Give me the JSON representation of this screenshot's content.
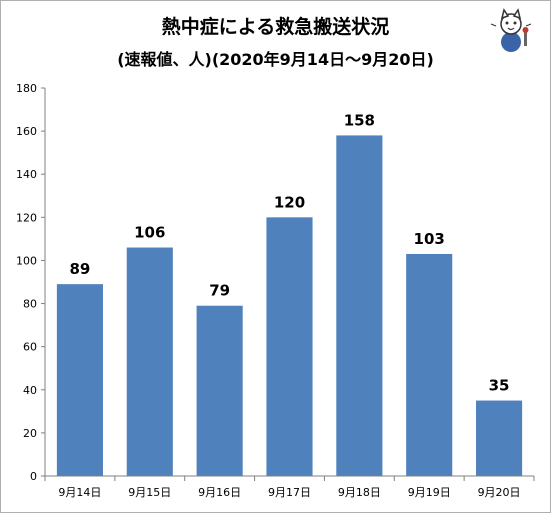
{
  "title": "熱中症による救急搬送状況",
  "subtitle": "(速報値、人)(2020年9月14日～9月20日)",
  "mascot_icon": "cat-mascot-icon",
  "chart_data": {
    "type": "bar",
    "title": "熱中症による救急搬送状況",
    "subtitle": "(速報値、人)(2020年9月14日～9月20日)",
    "categories": [
      "9月14日",
      "9月15日",
      "9月16日",
      "9月17日",
      "9月18日",
      "9月19日",
      "9月20日"
    ],
    "values": [
      89,
      106,
      79,
      120,
      158,
      103,
      35
    ],
    "ylim": [
      0,
      180
    ],
    "yticks": [
      "0",
      "20",
      "40",
      "60",
      "80",
      "100",
      "120",
      "140",
      "160",
      "180"
    ],
    "bar_color": "#4f81bd",
    "grid": false,
    "legend": "none"
  }
}
